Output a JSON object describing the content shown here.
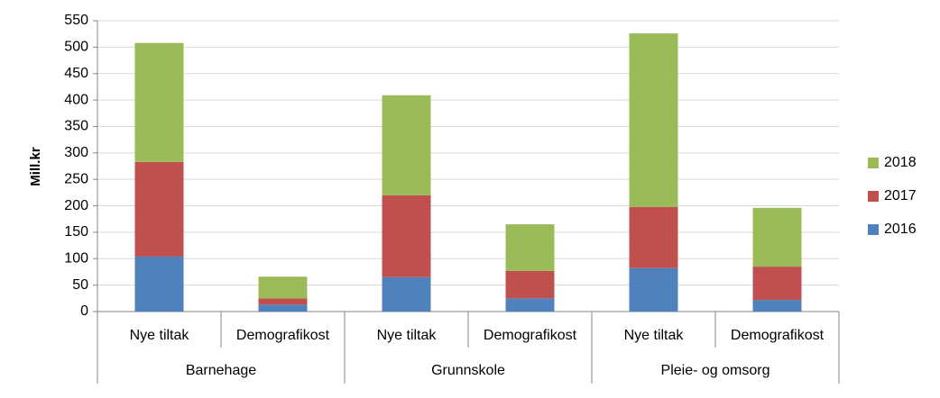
{
  "chart_data": {
    "type": "stacked_bar",
    "y_label": "Mill.kr",
    "categories": [
      "Nye tiltak",
      "Demografikost",
      "Nye tiltak",
      "Demografikost",
      "Nye tiltak",
      "Demografikost"
    ],
    "groups": [
      "Barnehage",
      "Grunnskole",
      "Pleie- og omsorg"
    ],
    "series": [
      {
        "name": "2016",
        "color": "#4f81bd",
        "values": [
          104,
          13,
          65,
          25,
          82,
          22
        ]
      },
      {
        "name": "2017",
        "color": "#c0504d",
        "values": [
          179,
          12,
          155,
          52,
          116,
          63
        ]
      },
      {
        "name": "2018",
        "color": "#9bbb59",
        "values": [
          225,
          41,
          189,
          88,
          328,
          111
        ]
      }
    ],
    "ylim": [
      0,
      550
    ],
    "yticks": [
      0,
      50,
      100,
      150,
      200,
      250,
      300,
      350,
      400,
      450,
      500,
      550
    ],
    "grid": true,
    "legend": "right"
  }
}
